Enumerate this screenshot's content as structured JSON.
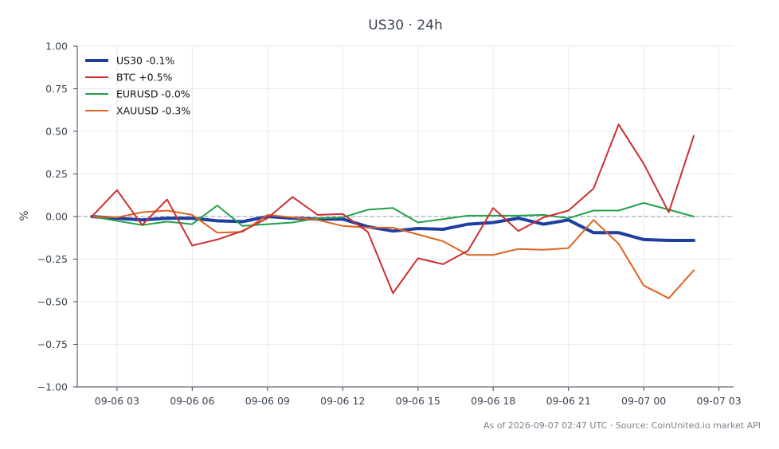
{
  "chart_data": {
    "type": "line",
    "title": "US30 · 24h",
    "xlabel": "",
    "ylabel": "%",
    "ylim": [
      -1.0,
      1.0
    ],
    "yticks": [
      -1.0,
      -0.75,
      -0.5,
      -0.25,
      0.0,
      0.25,
      0.5,
      0.75,
      1.0
    ],
    "ytick_labels": [
      "−1.00",
      "−0.75",
      "−0.50",
      "−0.25",
      "0.00",
      "0.25",
      "0.50",
      "0.75",
      "1.00"
    ],
    "xlim": [
      "2026-09-06 01:25",
      "2026-09-07 03:35"
    ],
    "xticks": [
      "2026-09-06 03:00",
      "2026-09-06 06:00",
      "2026-09-06 09:00",
      "2026-09-06 12:00",
      "2026-09-06 15:00",
      "2026-09-06 18:00",
      "2026-09-06 21:00",
      "2026-09-07 00:00",
      "2026-09-07 03:00"
    ],
    "xtick_labels": [
      "09-06 03",
      "09-06 06",
      "09-06 09",
      "09-06 12",
      "09-06 15",
      "09-06 18",
      "09-06 21",
      "09-07 00",
      "09-07 03"
    ],
    "x": [
      "2026-09-06 02:00",
      "2026-09-06 03:00",
      "2026-09-06 04:00",
      "2026-09-06 05:00",
      "2026-09-06 06:00",
      "2026-09-06 07:00",
      "2026-09-06 08:00",
      "2026-09-06 09:00",
      "2026-09-06 10:00",
      "2026-09-06 11:00",
      "2026-09-06 12:00",
      "2026-09-06 13:00",
      "2026-09-06 14:00",
      "2026-09-06 15:00",
      "2026-09-06 16:00",
      "2026-09-06 17:00",
      "2026-09-06 18:00",
      "2026-09-06 19:00",
      "2026-09-06 20:00",
      "2026-09-06 21:00",
      "2026-09-06 22:00",
      "2026-09-06 23:00",
      "2026-09-07 00:00",
      "2026-09-07 01:00",
      "2026-09-07 02:00"
    ],
    "baseline": 0.0,
    "grid": true,
    "legend_position": "top-left",
    "series": [
      {
        "name": "US30 -0.1%",
        "color": "#1f3fa0",
        "width": 4,
        "values": [
          0.0,
          -0.01,
          -0.02,
          -0.01,
          -0.01,
          -0.025,
          -0.03,
          0.0,
          -0.01,
          -0.015,
          -0.015,
          -0.06,
          -0.085,
          -0.07,
          -0.075,
          -0.045,
          -0.035,
          -0.01,
          -0.045,
          -0.02,
          -0.095,
          -0.095,
          -0.135,
          -0.14,
          -0.14
        ]
      },
      {
        "name": "BTC +0.5%",
        "color": "#cc2f2f",
        "width": 2,
        "values": [
          0.0,
          0.155,
          -0.05,
          0.1,
          -0.17,
          -0.135,
          -0.085,
          -0.01,
          0.115,
          0.01,
          0.015,
          -0.09,
          -0.45,
          -0.245,
          -0.28,
          -0.2,
          0.05,
          -0.085,
          -0.005,
          0.035,
          0.165,
          0.54,
          0.31,
          0.025,
          0.475
        ]
      },
      {
        "name": "EURUSD -0.0%",
        "color": "#22a04a",
        "width": 2,
        "values": [
          0.0,
          -0.025,
          -0.05,
          -0.03,
          -0.045,
          0.065,
          -0.055,
          -0.045,
          -0.035,
          -0.01,
          -0.005,
          0.04,
          0.05,
          -0.035,
          -0.015,
          0.005,
          0.005,
          0.005,
          0.01,
          -0.01,
          0.035,
          0.035,
          0.08,
          0.04,
          0.0
        ]
      },
      {
        "name": "XAUUSD -0.3%",
        "color": "#e0641f",
        "width": 2,
        "values": [
          0.0,
          -0.005,
          0.025,
          0.035,
          0.01,
          -0.095,
          -0.09,
          0.01,
          -0.005,
          -0.02,
          -0.055,
          -0.065,
          -0.065,
          -0.105,
          -0.145,
          -0.225,
          -0.225,
          -0.19,
          -0.195,
          -0.185,
          -0.02,
          -0.16,
          -0.405,
          -0.48,
          -0.315
        ]
      }
    ]
  },
  "footer": {
    "text": "As of 2026-09-07 02:47 UTC · Source: CoinUnited.io market API"
  }
}
